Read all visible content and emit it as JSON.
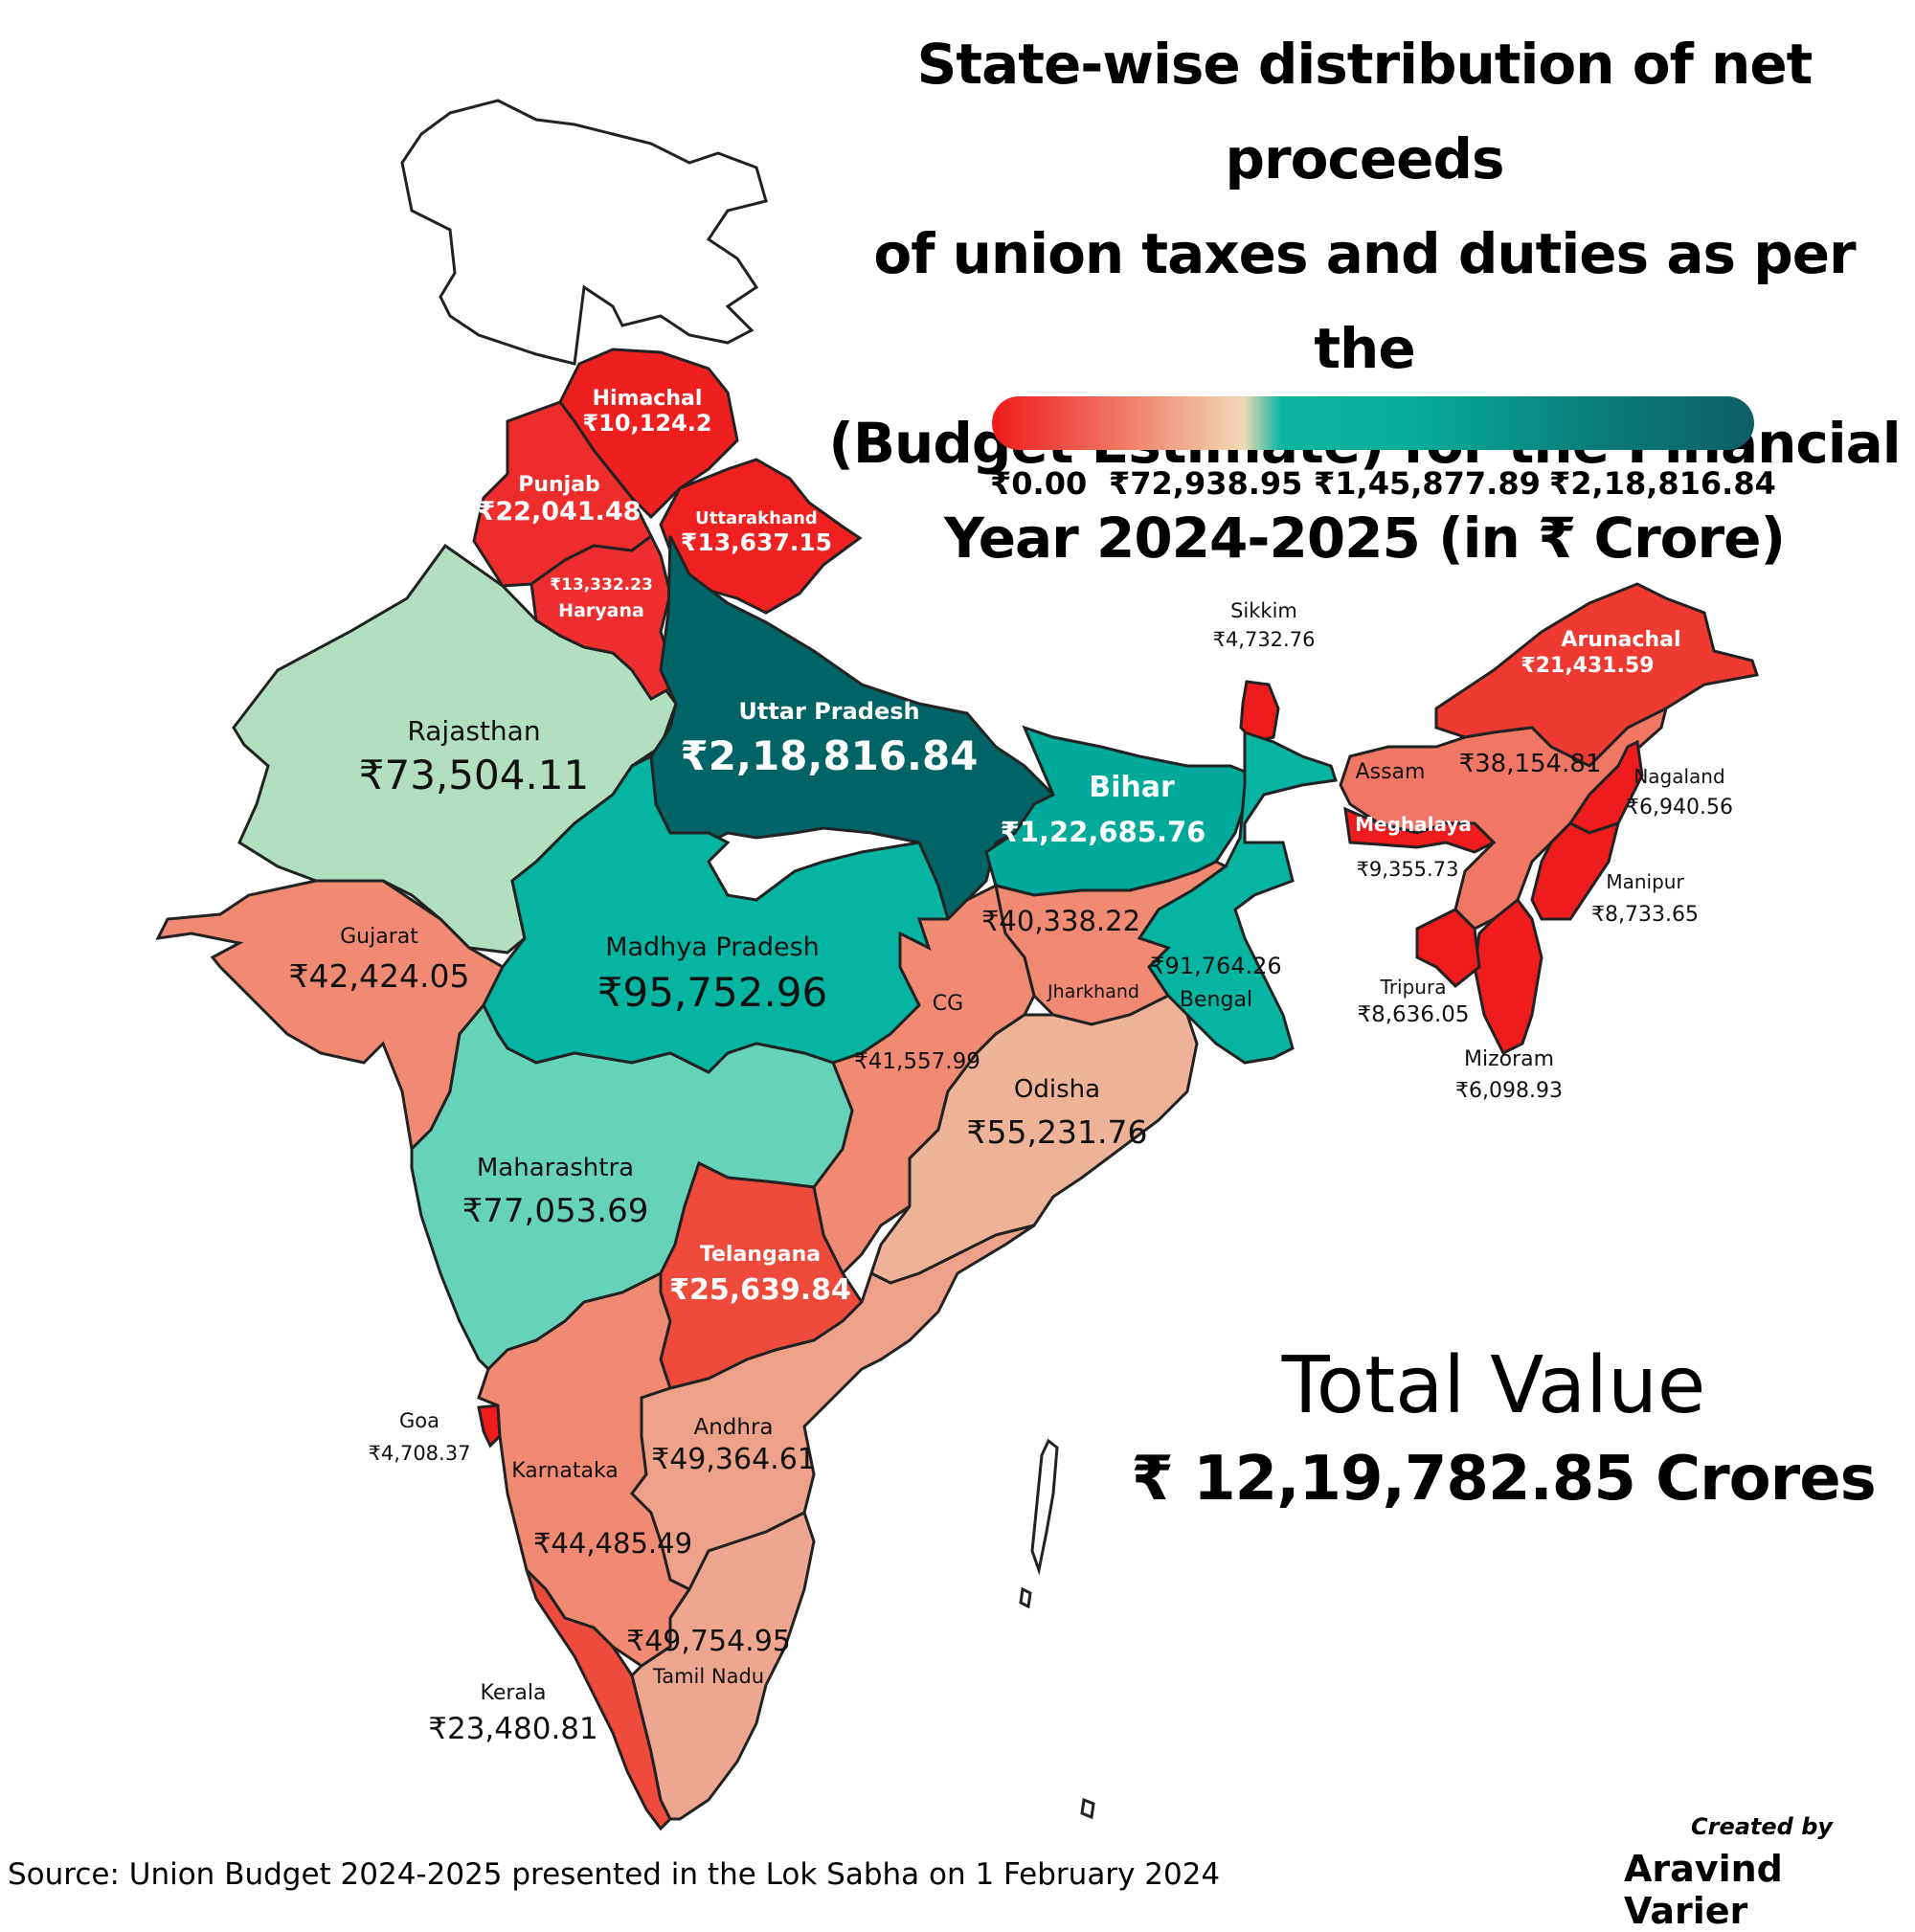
{
  "title": {
    "line1": "State-wise distribution of net proceeds",
    "line2": "of union taxes and duties as per the",
    "line3": "(Budget Estimate) for the Financial",
    "line4": "Year 2024-2025 (in ₹ Crore)"
  },
  "legend": {
    "ticks": [
      "₹0.00",
      "₹72,938.95",
      "₹1,45,877.89",
      "₹2,18,816.84"
    ],
    "min": 0,
    "max": 218816.84
  },
  "colors": {
    "red": "#ee1c1c",
    "salmon": "#f08a73",
    "peach": "#eeb297",
    "mint": "#66d3b8",
    "mintLight": "#b1dfbf",
    "teal": "#06b5a1",
    "tealMid": "#00a99a",
    "tealDark": "#006466",
    "outline": "#222222"
  },
  "states": {
    "himachal": {
      "name": "Himachal",
      "value": "₹10,124.2",
      "amount": 10124.2
    },
    "punjab": {
      "name": "Punjab",
      "value": "₹22,041.48",
      "amount": 22041.48
    },
    "uttarakhand": {
      "name": "Uttarakhand",
      "value": "₹13,637.15",
      "amount": 13637.15
    },
    "haryana": {
      "name": "Haryana",
      "value": "₹13,332.23",
      "amount": 13332.23
    },
    "rajasthan": {
      "name": "Rajasthan",
      "value": "₹73,504.11",
      "amount": 73504.11
    },
    "uttar_pradesh": {
      "name": "Uttar Pradesh",
      "value": "₹2,18,816.84",
      "amount": 218816.84
    },
    "bihar": {
      "name": "Bihar",
      "value": "₹1,22,685.76",
      "amount": 122685.76
    },
    "sikkim": {
      "name": "Sikkim",
      "value": "₹4,732.76",
      "amount": 4732.76
    },
    "arunachal": {
      "name": "Arunachal",
      "value": "₹21,431.59",
      "amount": 21431.59
    },
    "assam": {
      "name": "Assam",
      "value": "₹38,154.81",
      "amount": 38154.81
    },
    "nagaland": {
      "name": "Nagaland",
      "value": "₹6,940.56",
      "amount": 6940.56
    },
    "meghalaya": {
      "name": "Meghalaya",
      "value": "₹9,355.73",
      "amount": 9355.73
    },
    "manipur": {
      "name": "Manipur",
      "value": "₹8,733.65",
      "amount": 8733.65
    },
    "tripura": {
      "name": "Tripura",
      "value": "₹8,636.05",
      "amount": 8636.05
    },
    "mizoram": {
      "name": "Mizoram",
      "value": "₹6,098.93",
      "amount": 6098.93
    },
    "gujarat": {
      "name": "Gujarat",
      "value": "₹42,424.05",
      "amount": 42424.05
    },
    "madhya_pradesh": {
      "name": "Madhya Pradesh",
      "value": "₹95,752.96",
      "amount": 95752.96
    },
    "jharkhand": {
      "name": "Jharkhand",
      "value": "₹40,338.22",
      "amount": 40338.22
    },
    "bengal": {
      "name": "Bengal",
      "value": "₹91,764.26",
      "amount": 91764.26
    },
    "cg": {
      "name": "CG",
      "value": "₹41,557.99",
      "amount": 41557.99
    },
    "odisha": {
      "name": "Odisha",
      "value": "₹55,231.76",
      "amount": 55231.76
    },
    "maharashtra": {
      "name": "Maharashtra",
      "value": "₹77,053.69",
      "amount": 77053.69
    },
    "telangana": {
      "name": "Telangana",
      "value": "₹25,639.84",
      "amount": 25639.84
    },
    "goa": {
      "name": "Goa",
      "value": "₹4,708.37",
      "amount": 4708.37
    },
    "andhra": {
      "name": "Andhra",
      "value": "₹49,364.61",
      "amount": 49364.61
    },
    "karnataka": {
      "name": "Karnataka",
      "value": "₹44,485.49",
      "amount": 44485.49
    },
    "tamil_nadu": {
      "name": "Tamil Nadu",
      "value": "₹49,754.95",
      "amount": 49754.95
    },
    "kerala": {
      "name": "Kerala",
      "value": "₹23,480.81",
      "amount": 23480.81
    }
  },
  "total": {
    "label": "Total Value",
    "value": "₹ 12,19,782.85 Crores"
  },
  "source": "Source: Union Budget 2024-2025 presented in the Lok Sabha on 1 February 2024",
  "credit": {
    "line1": "Created by",
    "line2": "Aravind Varier"
  }
}
